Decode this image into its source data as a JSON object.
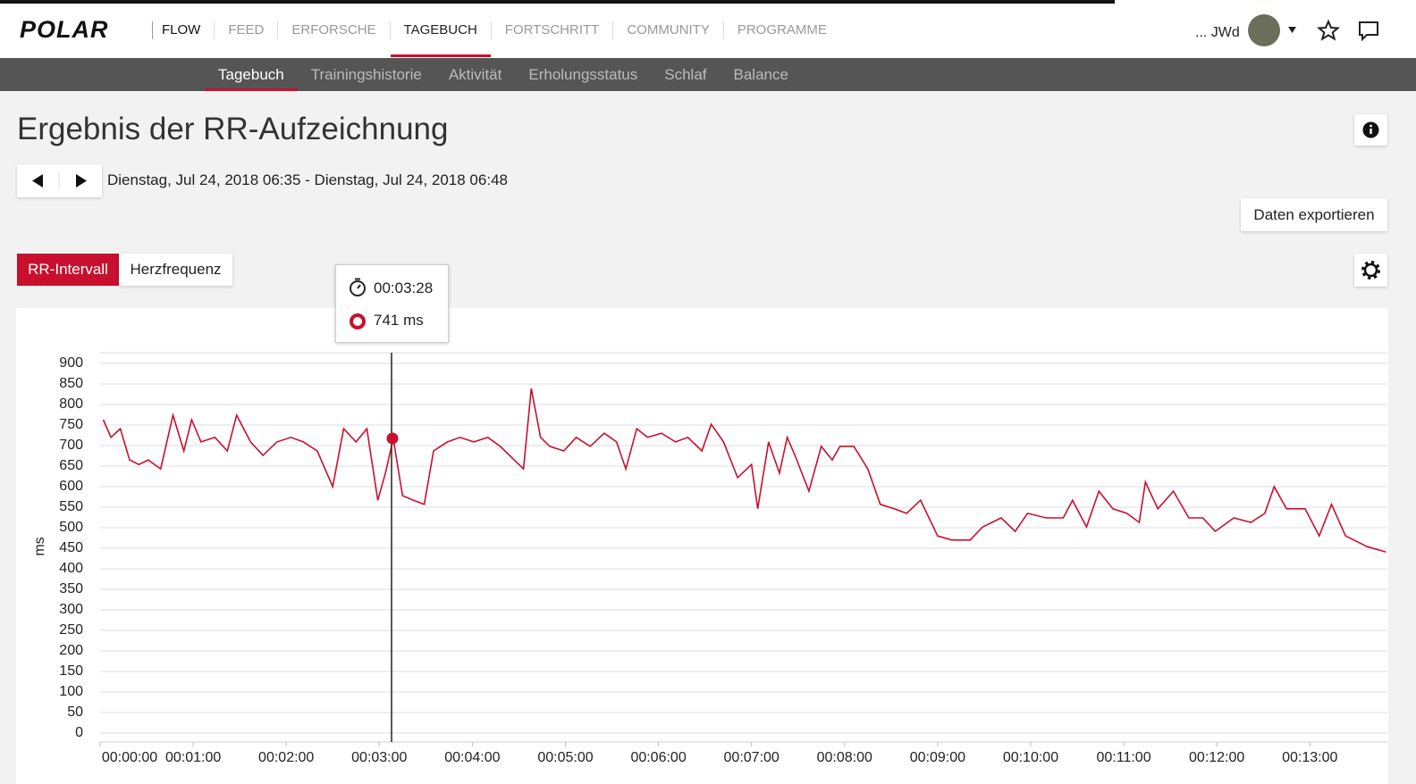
{
  "logo": "POLAR",
  "nav": {
    "brand": "FLOW",
    "items": [
      "FEED",
      "ERFORSCHE",
      "TAGEBUCH",
      "FORTSCHRITT",
      "COMMUNITY",
      "PROGRAMME"
    ]
  },
  "user": "... JWd",
  "subnav": [
    "Tagebuch",
    "Trainingshistorie",
    "Aktivität",
    "Erholungsstatus",
    "Schlaf",
    "Balance"
  ],
  "header": {
    "title": "Ergebnis der RR-Aufzeichnung",
    "date_range": "Dienstag, Jul 24, 2018 06:35 - Dienstag, Jul 24, 2018 06:48",
    "export": "Daten exportieren"
  },
  "tabs": [
    "RR-Intervall",
    "Herzfrequenz"
  ],
  "tooltip": {
    "time": "00:03:28",
    "value": "741 ms"
  },
  "chart_data": {
    "type": "line",
    "ylabel": "ms",
    "x": [
      2,
      7,
      13,
      19,
      25,
      31,
      39,
      47,
      54,
      59,
      65,
      74,
      82,
      88,
      97,
      105,
      114,
      123,
      131,
      140,
      150,
      157,
      165,
      172,
      179,
      184,
      189,
      195,
      202,
      209,
      215,
      224,
      232,
      241,
      250,
      258,
      267,
      273,
      278,
      284,
      290,
      299,
      307,
      316,
      325,
      333,
      339,
      346,
      353,
      362,
      371,
      379,
      388,
      394,
      402,
      411,
      420,
      424,
      431,
      438,
      443,
      448,
      457,
      465,
      472,
      477,
      486,
      495,
      503,
      512,
      520,
      529,
      540,
      549,
      561,
      569,
      581,
      590,
      598,
      610,
      621,
      627,
      636,
      644,
      653,
      662,
      670,
      674,
      682,
      692,
      702,
      711,
      719,
      731,
      742,
      751,
      757,
      765,
      777,
      786,
      794,
      803,
      817,
      829
    ],
    "series": [
      {
        "name": "RR-Intervall",
        "color": "#c8102e",
        "values": [
          763,
          720,
          741,
          665,
          654,
          665,
          643,
          774,
          687,
          763,
          709,
          720,
          687,
          774,
          709,
          676,
          709,
          720,
          709,
          687,
          600,
          741,
          709,
          741,
          567,
          633,
          717,
          578,
          567,
          557,
          687,
          709,
          720,
          709,
          720,
          698,
          665,
          643,
          839,
          720,
          698,
          687,
          720,
          698,
          730,
          709,
          643,
          741,
          720,
          730,
          709,
          720,
          687,
          752,
          709,
          622,
          654,
          546,
          709,
          633,
          720,
          676,
          589,
          698,
          665,
          698,
          698,
          643,
          557,
          546,
          535,
          567,
          480,
          470,
          470,
          502,
          524,
          491,
          535,
          524,
          524,
          567,
          502,
          589,
          546,
          535,
          513,
          611,
          546,
          589,
          524,
          524,
          491,
          524,
          513,
          535,
          600,
          546,
          546,
          480,
          557,
          480,
          454,
          441
        ]
      }
    ],
    "xlim": [
      0,
      830
    ],
    "xticks": [
      {
        "value": 0,
        "label": "00:00:00"
      },
      {
        "value": 60,
        "label": "00:01:00"
      },
      {
        "value": 120,
        "label": "00:02:00"
      },
      {
        "value": 180,
        "label": "00:03:00"
      },
      {
        "value": 240,
        "label": "00:04:00"
      },
      {
        "value": 300,
        "label": "00:05:00"
      },
      {
        "value": 360,
        "label": "00:06:00"
      },
      {
        "value": 420,
        "label": "00:07:00"
      },
      {
        "value": 480,
        "label": "00:08:00"
      },
      {
        "value": 540,
        "label": "00:09:00"
      },
      {
        "value": 600,
        "label": "00:10:00"
      },
      {
        "value": 660,
        "label": "00:11:00"
      },
      {
        "value": 720,
        "label": "00:12:00"
      },
      {
        "value": 780,
        "label": "00:13:00"
      }
    ],
    "ylim": [
      0,
      900
    ],
    "yticks": [
      0,
      50,
      100,
      150,
      200,
      250,
      300,
      350,
      400,
      450,
      500,
      550,
      600,
      650,
      700,
      750,
      800,
      850,
      900
    ],
    "grid": true
  }
}
